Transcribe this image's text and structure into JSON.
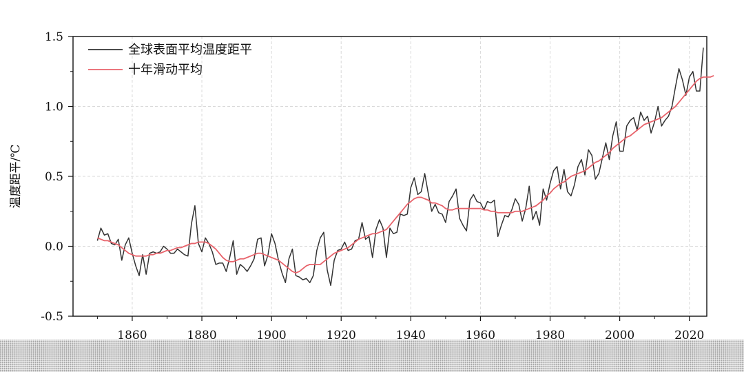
{
  "chart_data": {
    "type": "line",
    "title": "",
    "xlabel": "",
    "ylabel": "温度距平/℃",
    "xlim": [
      1843,
      2025
    ],
    "ylim": [
      -0.5,
      1.5
    ],
    "x_ticks": [
      1860,
      1880,
      1900,
      1920,
      1940,
      1960,
      1980,
      2000,
      2020
    ],
    "x_tick_labels": [
      "1860",
      "1880",
      "1900",
      "1920",
      "1940",
      "1960",
      "1980",
      "2000",
      "2020"
    ],
    "y_ticks": [
      -0.5,
      0.0,
      0.5,
      1.0,
      1.5
    ],
    "y_tick_labels": [
      "-0.5",
      "0.0",
      "0.5",
      "1.0",
      "1.5"
    ],
    "grid": true,
    "legend_position": "top-left",
    "series": [
      {
        "name": "全球表面平均温度距平",
        "color": "#333333",
        "x_start": 1850,
        "x_step": 1,
        "values": [
          0.04,
          0.13,
          0.08,
          0.09,
          0.02,
          0.01,
          0.05,
          -0.1,
          0.01,
          0.06,
          -0.05,
          -0.14,
          -0.21,
          -0.06,
          -0.2,
          -0.05,
          -0.04,
          -0.05,
          -0.04,
          0.0,
          -0.02,
          -0.05,
          -0.05,
          -0.02,
          -0.04,
          -0.06,
          -0.07,
          0.16,
          0.29,
          0.02,
          -0.04,
          0.06,
          0.02,
          -0.04,
          -0.13,
          -0.12,
          -0.12,
          -0.18,
          -0.08,
          0.04,
          -0.2,
          -0.13,
          -0.15,
          -0.18,
          -0.14,
          -0.09,
          0.05,
          0.06,
          -0.14,
          -0.06,
          0.09,
          0.02,
          -0.1,
          -0.19,
          -0.26,
          -0.09,
          -0.02,
          -0.21,
          -0.22,
          -0.24,
          -0.23,
          -0.26,
          -0.21,
          -0.03,
          0.06,
          0.1,
          -0.17,
          -0.28,
          -0.1,
          -0.03,
          -0.02,
          0.03,
          -0.03,
          -0.02,
          0.04,
          0.05,
          0.17,
          0.05,
          0.07,
          -0.08,
          0.12,
          0.19,
          0.13,
          -0.08,
          0.13,
          0.09,
          0.1,
          0.23,
          0.22,
          0.23,
          0.42,
          0.49,
          0.37,
          0.39,
          0.52,
          0.38,
          0.25,
          0.3,
          0.24,
          0.23,
          0.17,
          0.32,
          0.36,
          0.41,
          0.2,
          0.15,
          0.11,
          0.33,
          0.37,
          0.32,
          0.31,
          0.26,
          0.32,
          0.31,
          0.33,
          0.07,
          0.15,
          0.22,
          0.21,
          0.26,
          0.34,
          0.3,
          0.18,
          0.27,
          0.43,
          0.19,
          0.25,
          0.15,
          0.41,
          0.33,
          0.45,
          0.54,
          0.57,
          0.41,
          0.55,
          0.39,
          0.36,
          0.44,
          0.57,
          0.62,
          0.51,
          0.69,
          0.65,
          0.48,
          0.52,
          0.63,
          0.74,
          0.62,
          0.79,
          0.89,
          0.68,
          0.68,
          0.86,
          0.9,
          0.92,
          0.83,
          0.96,
          0.9,
          0.93,
          0.81,
          0.89,
          1.0,
          0.86,
          0.9,
          0.93,
          1.0,
          1.14,
          1.27,
          1.19,
          1.08,
          1.21,
          1.25,
          1.11,
          1.11,
          1.42
        ]
      },
      {
        "name": "十年滑动平均",
        "color": "#e8636b",
        "x_start": 1850,
        "x_step": 1,
        "values": [
          0.06,
          0.05,
          0.04,
          0.04,
          0.03,
          0.02,
          0.01,
          -0.01,
          -0.03,
          -0.05,
          -0.06,
          -0.07,
          -0.07,
          -0.07,
          -0.07,
          -0.06,
          -0.06,
          -0.05,
          -0.05,
          -0.04,
          -0.03,
          -0.03,
          -0.02,
          -0.01,
          -0.01,
          0.0,
          0.01,
          0.02,
          0.02,
          0.03,
          0.03,
          0.03,
          0.02,
          0.0,
          -0.02,
          -0.05,
          -0.08,
          -0.1,
          -0.11,
          -0.11,
          -0.1,
          -0.09,
          -0.09,
          -0.08,
          -0.07,
          -0.06,
          -0.05,
          -0.05,
          -0.06,
          -0.07,
          -0.08,
          -0.09,
          -0.1,
          -0.12,
          -0.14,
          -0.16,
          -0.18,
          -0.19,
          -0.18,
          -0.16,
          -0.14,
          -0.13,
          -0.13,
          -0.13,
          -0.13,
          -0.11,
          -0.09,
          -0.07,
          -0.05,
          -0.04,
          -0.03,
          -0.02,
          -0.01,
          0.01,
          0.03,
          0.05,
          0.06,
          0.07,
          0.08,
          0.09,
          0.09,
          0.1,
          0.11,
          0.12,
          0.15,
          0.18,
          0.21,
          0.24,
          0.27,
          0.3,
          0.32,
          0.34,
          0.35,
          0.35,
          0.34,
          0.33,
          0.31,
          0.31,
          0.3,
          0.29,
          0.27,
          0.26,
          0.26,
          0.27,
          0.27,
          0.27,
          0.27,
          0.27,
          0.27,
          0.27,
          0.27,
          0.26,
          0.26,
          0.25,
          0.25,
          0.24,
          0.24,
          0.24,
          0.24,
          0.24,
          0.25,
          0.25,
          0.25,
          0.26,
          0.27,
          0.28,
          0.29,
          0.31,
          0.33,
          0.36,
          0.38,
          0.41,
          0.43,
          0.45,
          0.46,
          0.48,
          0.5,
          0.51,
          0.52,
          0.53,
          0.54,
          0.56,
          0.58,
          0.6,
          0.61,
          0.63,
          0.65,
          0.67,
          0.7,
          0.72,
          0.74,
          0.76,
          0.78,
          0.79,
          0.81,
          0.83,
          0.85,
          0.87,
          0.88,
          0.89,
          0.9,
          0.91,
          0.92,
          0.94,
          0.96,
          0.98,
          1.0,
          1.03,
          1.06,
          1.09,
          1.12,
          1.15,
          1.18,
          1.2,
          1.21,
          1.21,
          1.21,
          1.22
        ]
      }
    ]
  }
}
